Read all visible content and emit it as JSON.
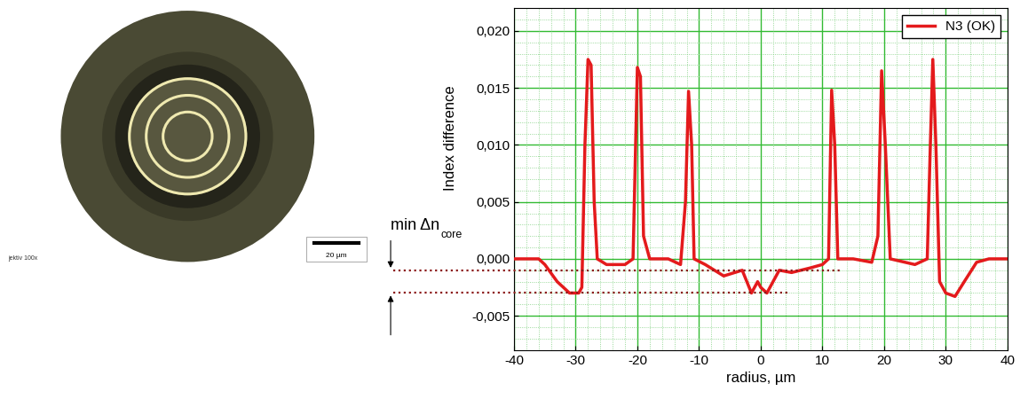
{
  "chart_data": {
    "type": "line",
    "x_label": "radius, µm",
    "y_label": "Index difference",
    "legend": "upper right",
    "grid": true,
    "xlim": [
      -40,
      40
    ],
    "xticks": [
      -40,
      -30,
      -20,
      -10,
      0,
      10,
      20,
      30,
      40
    ],
    "ylim": [
      -0.008,
      0.022
    ],
    "yticks": [
      {
        "value": -0.005,
        "label": "-0,005"
      },
      {
        "value": 0.0,
        "label": "0,000"
      },
      {
        "value": 0.005,
        "label": "0,005"
      },
      {
        "value": 0.01,
        "label": "0,010"
      },
      {
        "value": 0.015,
        "label": "0,015"
      },
      {
        "value": 0.02,
        "label": "0,020"
      }
    ],
    "x": [
      -40,
      -36,
      -35,
      -33,
      -31,
      -29.5,
      -29,
      -28.5,
      -28,
      -27.5,
      -27,
      -26.5,
      -25,
      -22,
      -20.7,
      -20,
      -19.5,
      -19,
      -18,
      -15,
      -13,
      -12.2,
      -11.7,
      -11.2,
      -10.8,
      -9,
      -6,
      -3,
      -1.5,
      -0.5,
      0,
      1,
      2,
      3,
      5,
      8,
      10,
      11,
      11.5,
      12,
      12.5,
      15,
      18,
      19,
      19.6,
      20.2,
      21,
      25,
      27,
      27.5,
      27.9,
      28.4,
      29,
      30,
      31.5,
      33,
      35,
      37,
      40
    ],
    "series": [
      {
        "name": "N3 (OK)",
        "color": "#e41a1c",
        "values": [
          0.0,
          0.0,
          -0.0005,
          -0.002,
          -0.003,
          -0.003,
          -0.0025,
          0.01,
          0.0175,
          0.017,
          0.005,
          0.0,
          -0.0005,
          -0.0005,
          0.0,
          0.0168,
          0.016,
          0.002,
          0.0,
          0.0,
          -0.0005,
          0.005,
          0.0147,
          0.01,
          0.0,
          -0.0005,
          -0.0015,
          -0.001,
          -0.003,
          -0.002,
          -0.0025,
          -0.003,
          -0.002,
          -0.001,
          -0.0012,
          -0.0008,
          -0.0005,
          0.0,
          0.0148,
          0.01,
          0.0,
          0.0,
          -0.0003,
          0.002,
          0.0165,
          0.01,
          0.0,
          -0.0005,
          0.0,
          0.01,
          0.0175,
          0.01,
          -0.002,
          -0.003,
          -0.0033,
          -0.002,
          -0.0003,
          0.0,
          0.0
        ]
      }
    ],
    "annotations": [
      {
        "text": "min Δn",
        "subscript": "core",
        "y": [
          -0.001,
          -0.003
        ]
      }
    ]
  },
  "image": {
    "objective_label": "jektiv 100x",
    "scale_bar": "20 µm"
  }
}
